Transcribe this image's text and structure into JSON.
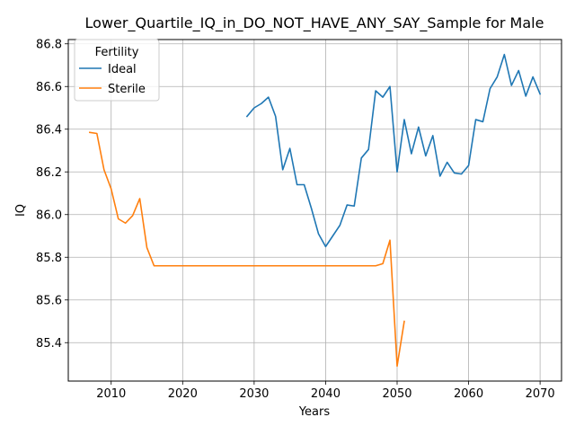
{
  "chart_data": {
    "type": "line",
    "title": "Lower_Quartile_IQ_in_DO_NOT_HAVE_ANY_SAY_Sample for Male",
    "xlabel": "Years",
    "ylabel": "IQ",
    "xlim": [
      2004,
      2073
    ],
    "ylim": [
      85.22,
      86.82
    ],
    "xticks": [
      2010,
      2020,
      2030,
      2040,
      2050,
      2060,
      2070
    ],
    "yticks": [
      85.4,
      85.6,
      85.8,
      86.0,
      86.2,
      86.4,
      86.6,
      86.8
    ],
    "grid": true,
    "legend": {
      "title": "Fertility",
      "placement": "top-left"
    },
    "series": [
      {
        "name": "Ideal",
        "color": "#1f77b4",
        "x": [
          2029,
          2030,
          2031,
          2032,
          2033,
          2034,
          2035,
          2036,
          2037,
          2038,
          2039,
          2040,
          2041,
          2042,
          2043,
          2044,
          2045,
          2046,
          2047,
          2048,
          2049,
          2050,
          2051,
          2052,
          2053,
          2054,
          2055,
          2056,
          2057,
          2058,
          2059,
          2060,
          2061,
          2062,
          2063,
          2064,
          2065,
          2066,
          2067,
          2068,
          2069,
          2070
        ],
        "y": [
          86.46,
          86.5,
          86.52,
          86.55,
          86.46,
          86.21,
          86.31,
          86.14,
          86.14,
          86.03,
          85.91,
          85.85,
          85.9,
          85.95,
          86.045,
          86.04,
          86.265,
          86.305,
          86.58,
          86.55,
          86.6,
          86.2,
          86.445,
          86.285,
          86.41,
          86.275,
          86.37,
          86.18,
          86.245,
          86.195,
          86.19,
          86.23,
          86.445,
          86.435,
          86.59,
          86.645,
          86.75,
          86.605,
          86.675,
          86.555,
          86.645,
          86.565
        ]
      },
      {
        "name": "Sterile",
        "color": "#ff7f0e",
        "x": [
          2007,
          2008,
          2009,
          2010,
          2011,
          2012,
          2013,
          2014,
          2015,
          2016,
          2017,
          2018,
          2019,
          2020,
          2021,
          2022,
          2023,
          2024,
          2025,
          2026,
          2027,
          2028,
          2029,
          2030,
          2031,
          2032,
          2033,
          2034,
          2035,
          2036,
          2037,
          2038,
          2039,
          2040,
          2041,
          2042,
          2043,
          2044,
          2045,
          2046,
          2047,
          2048,
          2049,
          2050,
          2051
        ],
        "y": [
          86.385,
          86.38,
          86.21,
          86.12,
          85.98,
          85.96,
          85.995,
          86.075,
          85.845,
          85.76,
          85.76,
          85.76,
          85.76,
          85.76,
          85.76,
          85.76,
          85.76,
          85.76,
          85.76,
          85.76,
          85.76,
          85.76,
          85.76,
          85.76,
          85.76,
          85.76,
          85.76,
          85.76,
          85.76,
          85.76,
          85.76,
          85.76,
          85.76,
          85.76,
          85.76,
          85.76,
          85.76,
          85.76,
          85.76,
          85.76,
          85.76,
          85.77,
          85.88,
          85.29,
          85.5
        ]
      }
    ]
  }
}
